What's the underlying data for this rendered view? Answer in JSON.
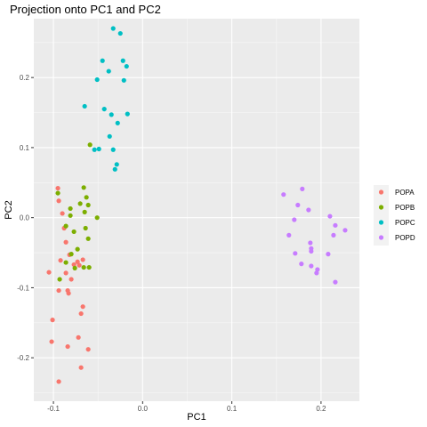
{
  "chart_data": {
    "type": "scatter",
    "title": "Projection onto PC1 and PC2",
    "xlabel": "PC1",
    "ylabel": "PC2",
    "xlim": [
      -0.122,
      0.243
    ],
    "ylim": [
      -0.262,
      0.284
    ],
    "x_ticks": [
      -0.1,
      0.0,
      0.1,
      0.2
    ],
    "x_tick_labels": [
      "-0.1",
      "0.0",
      "0.1",
      "0.2"
    ],
    "y_ticks": [
      -0.2,
      -0.1,
      0.0,
      0.1,
      0.2
    ],
    "y_tick_labels": [
      "-0.2",
      "-0.1",
      "0.0",
      "0.1",
      "0.2"
    ],
    "grid": true,
    "legend_position": "right",
    "series": [
      {
        "name": "POPA",
        "color": "#F8766D",
        "points": [
          [
            -0.095,
            0.042
          ],
          [
            -0.094,
            0.024
          ],
          [
            -0.09,
            0.006
          ],
          [
            -0.088,
            -0.015
          ],
          [
            -0.086,
            -0.035
          ],
          [
            -0.082,
            -0.053
          ],
          [
            -0.092,
            -0.061
          ],
          [
            -0.073,
            -0.063
          ],
          [
            -0.067,
            -0.06
          ],
          [
            -0.077,
            -0.067
          ],
          [
            -0.071,
            -0.068
          ],
          [
            -0.105,
            -0.078
          ],
          [
            -0.086,
            -0.079
          ],
          [
            -0.08,
            -0.088
          ],
          [
            -0.084,
            -0.104
          ],
          [
            -0.083,
            -0.108
          ],
          [
            -0.094,
            -0.104
          ],
          [
            -0.067,
            -0.127
          ],
          [
            -0.069,
            -0.137
          ],
          [
            -0.101,
            -0.146
          ],
          [
            -0.072,
            -0.171
          ],
          [
            -0.102,
            -0.177
          ],
          [
            -0.084,
            -0.184
          ],
          [
            -0.061,
            -0.188
          ],
          [
            -0.069,
            -0.214
          ],
          [
            -0.094,
            -0.234
          ]
        ]
      },
      {
        "name": "POPB",
        "color": "#7CAE00",
        "points": [
          [
            -0.059,
            0.104
          ],
          [
            -0.066,
            0.043
          ],
          [
            -0.095,
            0.035
          ],
          [
            -0.063,
            0.029
          ],
          [
            -0.07,
            0.02
          ],
          [
            -0.061,
            0.018
          ],
          [
            -0.081,
            0.013
          ],
          [
            -0.065,
            0.008
          ],
          [
            -0.081,
            0.003
          ],
          [
            -0.051,
            0.0
          ],
          [
            -0.086,
            -0.012
          ],
          [
            -0.064,
            -0.015
          ],
          [
            -0.077,
            -0.02
          ],
          [
            -0.061,
            -0.03
          ],
          [
            -0.073,
            -0.045
          ],
          [
            -0.08,
            -0.052
          ],
          [
            -0.086,
            -0.064
          ],
          [
            -0.066,
            -0.071
          ],
          [
            -0.076,
            -0.072
          ],
          [
            -0.06,
            -0.071
          ],
          [
            -0.093,
            -0.088
          ]
        ]
      },
      {
        "name": "POPC",
        "color": "#00BFC4",
        "points": [
          [
            -0.033,
            0.27
          ],
          [
            -0.025,
            0.263
          ],
          [
            -0.045,
            0.224
          ],
          [
            -0.022,
            0.224
          ],
          [
            -0.018,
            0.216
          ],
          [
            -0.038,
            0.209
          ],
          [
            -0.021,
            0.196
          ],
          [
            -0.051,
            0.197
          ],
          [
            -0.065,
            0.159
          ],
          [
            -0.043,
            0.155
          ],
          [
            -0.017,
            0.148
          ],
          [
            -0.035,
            0.147
          ],
          [
            -0.028,
            0.135
          ],
          [
            -0.037,
            0.116
          ],
          [
            -0.054,
            0.097
          ],
          [
            -0.049,
            0.098
          ],
          [
            -0.033,
            0.097
          ],
          [
            -0.029,
            0.076
          ],
          [
            -0.031,
            0.069
          ]
        ]
      },
      {
        "name": "POPD",
        "color": "#C77CFF",
        "points": [
          [
            0.179,
            0.041
          ],
          [
            0.158,
            0.033
          ],
          [
            0.174,
            0.018
          ],
          [
            0.186,
            0.011
          ],
          [
            0.21,
            0.002
          ],
          [
            0.17,
            -0.003
          ],
          [
            0.216,
            -0.011
          ],
          [
            0.227,
            -0.018
          ],
          [
            0.164,
            -0.025
          ],
          [
            0.214,
            -0.025
          ],
          [
            0.188,
            -0.036
          ],
          [
            0.189,
            -0.044
          ],
          [
            0.189,
            -0.048
          ],
          [
            0.171,
            -0.051
          ],
          [
            0.208,
            -0.052
          ],
          [
            0.178,
            -0.066
          ],
          [
            0.189,
            -0.069
          ],
          [
            0.196,
            -0.074
          ],
          [
            0.195,
            -0.079
          ],
          [
            0.216,
            -0.092
          ]
        ]
      }
    ]
  }
}
